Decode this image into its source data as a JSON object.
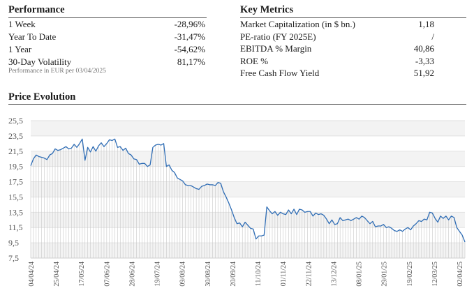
{
  "performance": {
    "title": "Performance",
    "rows": [
      {
        "label": "1 Week",
        "value": "-28,96%"
      },
      {
        "label": "Year To Date",
        "value": "-31,47%"
      },
      {
        "label": "1 Year",
        "value": "-54,62%"
      },
      {
        "label": "30-Day Volatility",
        "value": "81,17%"
      }
    ],
    "note": "Performance in EUR per 03/04/2025"
  },
  "key_metrics": {
    "title": "Key Metrics",
    "rows": [
      {
        "label": "Market Capitalization (in $ bn.)",
        "value": "1,18"
      },
      {
        "label": "PE-ratio (FY 2025E)",
        "value": "/"
      },
      {
        "label": "EBITDA % Margin",
        "value": "40,86"
      },
      {
        "label": "ROE %",
        "value": "-3,33"
      },
      {
        "label": "Free Cash Flow Yield",
        "value": "51,92"
      }
    ]
  },
  "price_section": {
    "title": "Price Evolution"
  },
  "colors": {
    "line": "#2f6db5",
    "fill_grid": "#c8c8c8",
    "band": "#f3f3f3"
  },
  "chart_data": {
    "type": "area",
    "title": "Price Evolution",
    "xlabel": "",
    "ylabel": "",
    "ylim": [
      7.5,
      25.5
    ],
    "yticks": [
      "25,5",
      "23,5",
      "21,5",
      "19,5",
      "17,5",
      "15,5",
      "13,5",
      "11,5",
      "9,5",
      "7,5"
    ],
    "xticks": [
      "04/04/24",
      "25/04/24",
      "17/05/24",
      "07/06/24",
      "28/06/24",
      "19/07/24",
      "09/08/24",
      "30/08/24",
      "20/09/24",
      "11/10/24",
      "01/11/24",
      "22/11/24",
      "13/12/24",
      "08/01/25",
      "29/01/25",
      "19/02/25",
      "12/03/25",
      "02/04/25"
    ],
    "grid": true,
    "legend": "none",
    "series": [
      {
        "values": [
          19.6,
          20.5,
          21.0,
          20.8,
          20.7,
          20.6,
          20.4,
          21.0,
          21.2,
          21.8,
          21.6,
          21.7,
          21.9,
          22.1,
          21.8,
          21.9,
          22.4,
          22.0,
          22.5,
          23.1,
          20.3,
          22.0,
          21.4,
          22.1,
          21.5,
          22.2,
          22.6,
          22.1,
          22.5,
          23.0,
          22.9,
          23.1,
          22.0,
          22.1,
          21.6,
          21.9,
          21.2,
          21.0,
          20.5,
          20.4,
          19.8,
          19.9,
          19.9,
          19.5,
          19.7,
          22.0,
          22.3,
          22.4,
          22.3,
          22.5,
          19.5,
          19.7,
          19.0,
          18.7,
          18.0,
          17.8,
          17.6,
          17.1,
          17.0,
          17.0,
          16.8,
          16.6,
          16.5,
          16.9,
          17.0,
          17.2,
          17.1,
          17.1,
          17.0,
          17.4,
          17.3,
          16.2,
          15.5,
          14.7,
          13.8,
          12.8,
          12.0,
          12.1,
          11.6,
          12.2,
          11.8,
          11.4,
          11.3,
          10.0,
          10.4,
          10.4,
          10.5,
          14.2,
          13.7,
          13.3,
          13.6,
          13.1,
          13.5,
          13.3,
          13.2,
          13.8,
          13.3,
          13.9,
          13.2,
          13.9,
          13.8,
          13.5,
          13.6,
          13.6,
          13.0,
          13.4,
          13.2,
          13.3,
          13.1,
          12.6,
          12.0,
          12.5,
          11.9,
          12.0,
          12.8,
          12.4,
          12.5,
          12.6,
          12.4,
          12.6,
          12.8,
          12.6,
          13.0,
          12.8,
          12.4,
          12.0,
          12.3,
          11.6,
          11.7,
          11.7,
          11.9,
          11.5,
          11.6,
          11.4,
          11.1,
          11.0,
          11.2,
          11.0,
          11.3,
          11.5,
          11.2,
          11.7,
          12.0,
          12.4,
          12.3,
          12.6,
          12.5,
          13.5,
          13.4,
          12.7,
          12.2,
          13.0,
          12.7,
          13.0,
          12.5,
          13.0,
          12.8,
          11.5,
          11.0,
          10.5,
          9.6
        ]
      }
    ]
  }
}
